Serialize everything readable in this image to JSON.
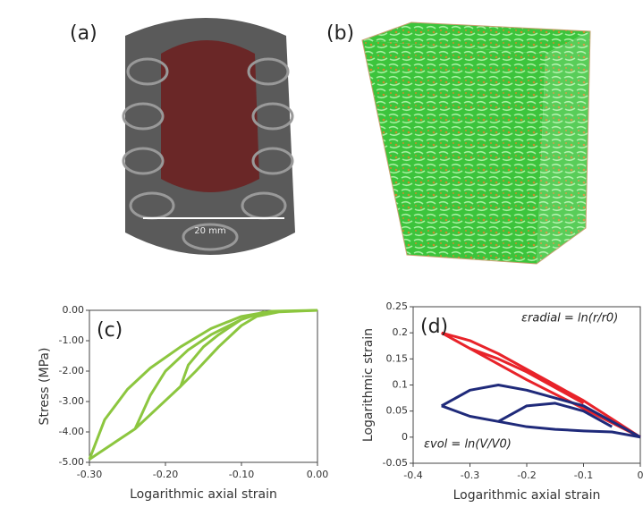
{
  "panels": {
    "a": {
      "label": "(a)",
      "scale": "20 mm"
    },
    "b": {
      "label": "(b)"
    }
  },
  "chart_data": [
    {
      "type": "line",
      "panel_label": "(c)",
      "x_label": "Logarithmic axial strain",
      "y_label": "Stress (MPa)",
      "xlim": [
        -0.3,
        0
      ],
      "ylim": [
        -5,
        0
      ],
      "xticks": [
        {
          "value": -0.3,
          "label": "-0.30"
        },
        {
          "value": -0.2,
          "label": "-0.20"
        },
        {
          "value": -0.1,
          "label": "-0.10"
        },
        {
          "value": 0,
          "label": "0.00"
        }
      ],
      "yticks": [
        {
          "value": -5,
          "label": "-5.00"
        },
        {
          "value": -4,
          "label": "-4.00"
        },
        {
          "value": -3,
          "label": "-3.00"
        },
        {
          "value": -2,
          "label": "-2.00"
        },
        {
          "value": -1,
          "label": "-1.00"
        },
        {
          "value": 0,
          "label": "0.00"
        }
      ],
      "series": [
        {
          "color": "#8cc63f",
          "x": [
            0,
            -0.05,
            -0.08,
            -0.1,
            -0.13,
            -0.16,
            -0.18,
            -0.21,
            -0.24,
            -0.27,
            -0.3
          ],
          "values": [
            0,
            -0.05,
            -0.2,
            -0.5,
            -1.2,
            -2.0,
            -2.5,
            -3.2,
            -3.9,
            -4.4,
            -4.9
          ]
        },
        {
          "color": "#8cc63f",
          "x": [
            -0.3,
            -0.28,
            -0.25,
            -0.22,
            -0.18,
            -0.14,
            -0.1,
            -0.06,
            0
          ],
          "values": [
            -4.9,
            -3.6,
            -2.6,
            -1.9,
            -1.2,
            -0.6,
            -0.2,
            -0.03,
            0
          ]
        },
        {
          "color": "#8cc63f",
          "x": [
            -0.24,
            -0.22,
            -0.2,
            -0.17,
            -0.14,
            -0.1,
            -0.07
          ],
          "values": [
            -3.9,
            -2.8,
            -2.0,
            -1.3,
            -0.8,
            -0.3,
            -0.05
          ]
        },
        {
          "color": "#8cc63f",
          "x": [
            -0.18,
            -0.17,
            -0.15,
            -0.13,
            -0.1,
            -0.07
          ],
          "values": [
            -2.5,
            -1.8,
            -1.2,
            -0.8,
            -0.3,
            -0.05
          ]
        }
      ]
    },
    {
      "type": "line",
      "panel_label": "(d)",
      "x_label": "Logarithmic axial strain",
      "y_label": "Logarithmic strain",
      "annotations": [
        "εradial = ln(r/r0)",
        "εvol = ln(V/V0)"
      ],
      "xlim": [
        -0.4,
        0
      ],
      "ylim": [
        -0.05,
        0.25
      ],
      "xticks": [
        -0.4,
        -0.3,
        -0.2,
        -0.1,
        0
      ],
      "yticks": [
        -0.05,
        0,
        0.05,
        0.1,
        0.15,
        0.2,
        0.25
      ],
      "series": [
        {
          "color": "#e8232a",
          "x": [
            -0.35,
            -0.3,
            -0.25,
            -0.2,
            -0.15,
            -0.1,
            -0.05,
            0
          ],
          "values": [
            0.2,
            0.185,
            0.16,
            0.13,
            0.1,
            0.07,
            0.035,
            0
          ]
        },
        {
          "color": "#e8232a",
          "x": [
            -0.35,
            -0.3,
            -0.2,
            -0.1,
            0
          ],
          "values": [
            0.2,
            0.17,
            0.11,
            0.055,
            0
          ]
        },
        {
          "color": "#e8232a",
          "x": [
            -0.3,
            -0.25,
            -0.2,
            -0.15,
            -0.1
          ],
          "values": [
            0.17,
            0.15,
            0.125,
            0.095,
            0.065
          ]
        },
        {
          "color": "#1f2a7a",
          "x": [
            -0.35,
            -0.3,
            -0.25,
            -0.2,
            -0.15,
            -0.1,
            -0.05,
            0
          ],
          "values": [
            0.06,
            0.09,
            0.1,
            0.09,
            0.075,
            0.06,
            0.03,
            0
          ]
        },
        {
          "color": "#1f2a7a",
          "x": [
            -0.35,
            -0.3,
            -0.25,
            -0.2,
            -0.15,
            -0.1,
            -0.05,
            0
          ],
          "values": [
            0.06,
            0.04,
            0.03,
            0.02,
            0.015,
            0.012,
            0.01,
            0
          ]
        },
        {
          "color": "#1f2a7a",
          "x": [
            -0.25,
            -0.2,
            -0.15,
            -0.1,
            -0.05
          ],
          "values": [
            0.03,
            0.06,
            0.065,
            0.05,
            0.02
          ]
        }
      ]
    }
  ]
}
